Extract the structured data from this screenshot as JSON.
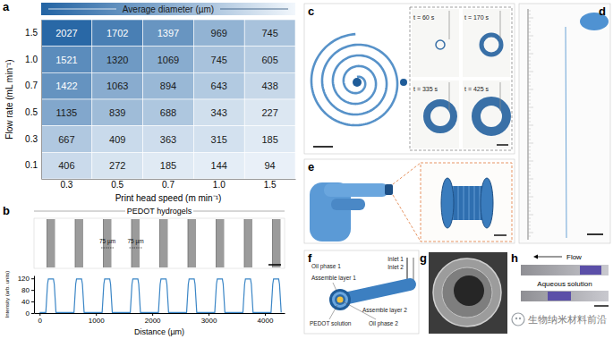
{
  "chart_data": [
    {
      "type": "heatmap",
      "panel_label": "a",
      "title": "Average diameter (µm)",
      "x_label": "Print head speed (m min⁻¹)",
      "y_label": "Flow rate (mL min⁻¹)",
      "x": [
        "0.3",
        "0.5",
        "0.7",
        "1.0",
        "1.5"
      ],
      "y": [
        "1.5",
        "1.0",
        "0.7",
        "0.5",
        "0.3",
        "0.1"
      ],
      "cells": [
        [
          2027,
          1702,
          1397,
          969,
          745
        ],
        [
          1521,
          1320,
          1069,
          745,
          605
        ],
        [
          1422,
          1063,
          894,
          643,
          438
        ],
        [
          1135,
          839,
          688,
          343,
          227
        ],
        [
          667,
          409,
          363,
          315,
          185
        ],
        [
          406,
          272,
          185,
          144,
          94
        ]
      ],
      "colorbar_range": [
        0,
        2100
      ],
      "data_labels": true
    },
    {
      "type": "line",
      "panel_label": "b",
      "title": "PEDOT hydrogels",
      "x_label": "Distance (µm)",
      "y_label": "Intensity (arb. units)",
      "annotations": [
        "75 µm",
        "75 µm"
      ],
      "x": [
        0,
        110,
        140,
        155,
        245,
        260,
        290,
        610,
        640,
        655,
        745,
        760,
        790,
        1110,
        1140,
        1155,
        1245,
        1260,
        1290,
        1610,
        1640,
        1655,
        1745,
        1760,
        1790,
        2110,
        2140,
        2155,
        2245,
        2260,
        2290,
        2610,
        2640,
        2655,
        2745,
        2760,
        2790,
        3110,
        3140,
        3155,
        3245,
        3260,
        3290,
        3610,
        3640,
        3655,
        3745,
        3760,
        3790,
        4110,
        4140,
        4155,
        4245,
        4260,
        4290
      ],
      "values": [
        2,
        2,
        100,
        118,
        118,
        100,
        2,
        2,
        100,
        118,
        118,
        100,
        2,
        2,
        100,
        118,
        118,
        100,
        2,
        2,
        100,
        118,
        118,
        100,
        2,
        2,
        100,
        118,
        118,
        100,
        2,
        2,
        100,
        118,
        118,
        100,
        2,
        2,
        100,
        118,
        118,
        100,
        2,
        2,
        100,
        118,
        118,
        100,
        2,
        2,
        100,
        118,
        118,
        100,
        2
      ],
      "xlim": [
        -100,
        4350
      ],
      "ylim": [
        0,
        130
      ],
      "xticks": [
        0,
        1000,
        2000,
        3000,
        4000
      ],
      "yticks": [
        0,
        40,
        80,
        120
      ],
      "color": "#3b86c6"
    }
  ],
  "panels": [
    {
      "label": "c",
      "texts": [
        "t = 60 s",
        "t = 170 s",
        "t = 335 s",
        "t = 425 s"
      ]
    },
    {
      "label": "d"
    },
    {
      "label": "e"
    },
    {
      "label": "f",
      "texts": [
        "Oil phase 1",
        "Inlet 1",
        "Inlet 2",
        "Assemble layer 1",
        "Assemble layer 2",
        "PEDOT solution",
        "Oil phase 2"
      ]
    },
    {
      "label": "g"
    },
    {
      "label": "h",
      "texts": [
        "Flow",
        "Aqueous solution"
      ]
    }
  ],
  "watermark": "生物纳米材料前沿"
}
